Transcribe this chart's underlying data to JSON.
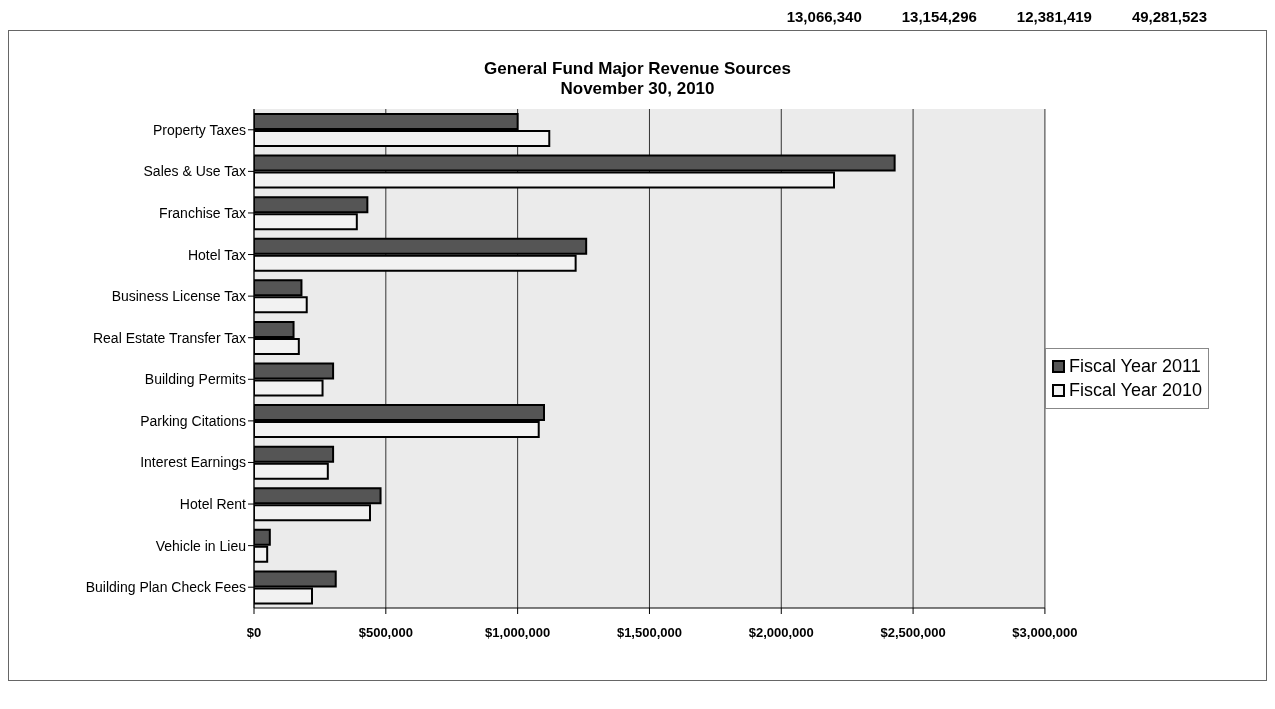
{
  "chart_data": {
    "type": "bar",
    "orientation": "horizontal",
    "title": "General Fund Major Revenue Sources",
    "subtitle": "November 30, 2010",
    "categories": [
      "Property Taxes",
      "Sales & Use Tax",
      "Franchise Tax",
      "Hotel Tax",
      "Business License Tax",
      "Real Estate Transfer Tax",
      "Building Permits",
      "Parking Citations",
      "Interest Earnings",
      "Hotel Rent",
      "Vehicle in Lieu",
      "Building Plan Check Fees"
    ],
    "series": [
      {
        "name": "Fiscal Year 2011",
        "color": "#555555",
        "values": [
          1000000,
          2430000,
          430000,
          1260000,
          180000,
          150000,
          300000,
          1100000,
          300000,
          480000,
          60000,
          310000
        ]
      },
      {
        "name": "Fiscal Year 2010",
        "color": "#f2f2f2",
        "values": [
          1120000,
          2200000,
          390000,
          1220000,
          200000,
          170000,
          260000,
          1080000,
          280000,
          440000,
          50000,
          220000
        ]
      }
    ],
    "xlim": [
      0,
      3000000
    ],
    "xticks": [
      {
        "value": 0,
        "label": "$0"
      },
      {
        "value": 500000,
        "label": "$500,000"
      },
      {
        "value": 1000000,
        "label": "$1,000,000"
      },
      {
        "value": 1500000,
        "label": "$1,500,000"
      },
      {
        "value": 2000000,
        "label": "$2,000,000"
      },
      {
        "value": 2500000,
        "label": "$2,500,000"
      },
      {
        "value": 3000000,
        "label": "$3,000,000"
      }
    ],
    "grid": "x",
    "legend": "right",
    "annotations": [
      "13,066,340",
      "13,154,296",
      "12,381,419",
      "49,281,523"
    ]
  }
}
